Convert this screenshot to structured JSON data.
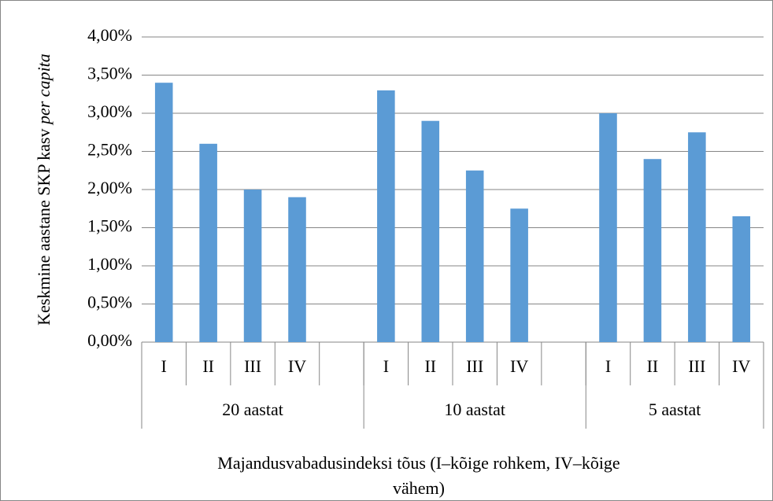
{
  "chart_data": {
    "type": "bar",
    "y_label": [
      "Keskmine aastane SKP kasv",
      "per capita"
    ],
    "x_label": [
      "Majandusvabadusindeksi tõus (I–kõige rohkem, IV–kõige",
      "vähem)"
    ],
    "categories": [
      "I",
      "II",
      "III",
      "IV",
      null,
      "I",
      "II",
      "III",
      "IV",
      null,
      "I",
      "II",
      "III",
      "IV"
    ],
    "groups": [
      "20 aastat",
      "10 aastat",
      "5 aastat"
    ],
    "values": [
      3.4,
      2.6,
      2.0,
      1.9,
      null,
      3.3,
      2.9,
      2.25,
      1.75,
      null,
      3.0,
      2.4,
      2.75,
      1.65
    ],
    "color": "#5b9bd5",
    "ylim": [
      0,
      4
    ],
    "yticks": [
      {
        "value": 0,
        "label": "0,00%"
      },
      {
        "value": 0.5,
        "label": "0,50%"
      },
      {
        "value": 1,
        "label": "1,00%"
      },
      {
        "value": 1.5,
        "label": "1,50%"
      },
      {
        "value": 2,
        "label": "2,00%"
      },
      {
        "value": 2.5,
        "label": "2,50%"
      },
      {
        "value": 3,
        "label": "3,00%"
      },
      {
        "value": 3.5,
        "label": "3,50%"
      },
      {
        "value": 4,
        "label": "4,00%"
      }
    ],
    "grid": true
  }
}
